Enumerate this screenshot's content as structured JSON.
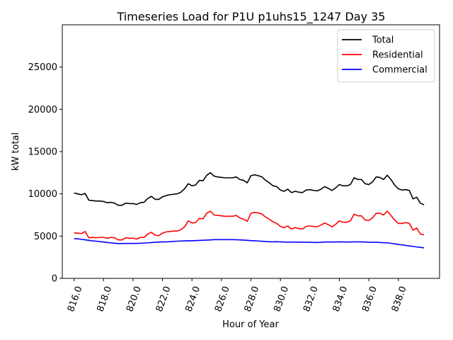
{
  "chart_data": {
    "type": "line",
    "title": "Timeseries Load for P1U p1uhs15_1247  Day 35",
    "xlabel": "Hour of Year",
    "ylabel": "kW total",
    "xlim": [
      815.2,
      840.8
    ],
    "ylim": [
      0,
      30000
    ],
    "x_ticks": [
      816,
      818,
      820,
      822,
      824,
      826,
      828,
      830,
      832,
      834,
      836,
      838
    ],
    "x_tick_labels": [
      "816.0",
      "818.0",
      "820.0",
      "822.0",
      "824.0",
      "826.0",
      "828.0",
      "830.0",
      "832.0",
      "834.0",
      "836.0",
      "838.0"
    ],
    "y_ticks": [
      0,
      5000,
      10000,
      15000,
      20000,
      25000
    ],
    "y_tick_labels": [
      "0",
      "5000",
      "10000",
      "15000",
      "20000",
      "25000"
    ],
    "legend_position": "upper right",
    "x_start": 816,
    "x_step": 0.25,
    "series": [
      {
        "name": "Total",
        "color": "#000000",
        "values": [
          10100,
          10000,
          9900,
          10050,
          9250,
          9200,
          9150,
          9150,
          9100,
          8950,
          9000,
          8900,
          8650,
          8650,
          8900,
          8850,
          8850,
          8750,
          8950,
          9000,
          9450,
          9700,
          9350,
          9350,
          9650,
          9800,
          9900,
          9950,
          10000,
          10200,
          10600,
          11200,
          10950,
          11050,
          11600,
          11550,
          12200,
          12500,
          12100,
          12000,
          11950,
          11900,
          11900,
          11900,
          12000,
          11700,
          11600,
          11300,
          12150,
          12250,
          12150,
          12000,
          11600,
          11300,
          10950,
          10850,
          10450,
          10300,
          10550,
          10150,
          10300,
          10200,
          10150,
          10450,
          10500,
          10400,
          10350,
          10550,
          10850,
          10650,
          10400,
          10700,
          11100,
          10950,
          10950,
          11100,
          11900,
          11700,
          11700,
          11200,
          11100,
          11400,
          12000,
          11950,
          11700,
          12200,
          11700,
          11050,
          10600,
          10450,
          10500,
          10400,
          9400,
          9600,
          8900,
          8700
        ]
      },
      {
        "name": "Residential",
        "color": "#ff0000",
        "values": [
          5400,
          5350,
          5300,
          5550,
          4800,
          4850,
          4800,
          4850,
          4850,
          4750,
          4850,
          4800,
          4550,
          4550,
          4800,
          4750,
          4750,
          4650,
          4850,
          4850,
          5250,
          5450,
          5100,
          5050,
          5350,
          5500,
          5550,
          5600,
          5600,
          5750,
          6100,
          6800,
          6550,
          6600,
          7100,
          7050,
          7700,
          7950,
          7500,
          7450,
          7400,
          7350,
          7350,
          7350,
          7450,
          7150,
          7000,
          6750,
          7700,
          7800,
          7750,
          7600,
          7250,
          7000,
          6700,
          6500,
          6150,
          6000,
          6200,
          5850,
          6000,
          5900,
          5850,
          6150,
          6200,
          6150,
          6100,
          6300,
          6550,
          6350,
          6100,
          6400,
          6800,
          6650,
          6650,
          6800,
          7600,
          7400,
          7400,
          6900,
          6850,
          7150,
          7700,
          7700,
          7500,
          7950,
          7450,
          6900,
          6500,
          6500,
          6600,
          6500,
          5700,
          5950,
          5250,
          5150
        ]
      },
      {
        "name": "Commercial",
        "color": "#0000ff",
        "values": [
          4700,
          4680,
          4620,
          4560,
          4500,
          4440,
          4400,
          4350,
          4300,
          4250,
          4200,
          4150,
          4120,
          4120,
          4130,
          4130,
          4130,
          4140,
          4150,
          4180,
          4200,
          4240,
          4270,
          4300,
          4310,
          4320,
          4340,
          4370,
          4400,
          4420,
          4440,
          4460,
          4450,
          4470,
          4490,
          4510,
          4530,
          4550,
          4580,
          4580,
          4580,
          4580,
          4580,
          4580,
          4570,
          4550,
          4530,
          4500,
          4470,
          4450,
          4420,
          4390,
          4360,
          4330,
          4320,
          4340,
          4320,
          4300,
          4290,
          4290,
          4290,
          4290,
          4280,
          4280,
          4270,
          4250,
          4250,
          4270,
          4300,
          4300,
          4300,
          4310,
          4320,
          4310,
          4300,
          4310,
          4320,
          4320,
          4310,
          4300,
          4280,
          4270,
          4270,
          4250,
          4220,
          4200,
          4150,
          4080,
          4020,
          3960,
          3900,
          3840,
          3780,
          3720,
          3670,
          3610
        ]
      }
    ]
  }
}
